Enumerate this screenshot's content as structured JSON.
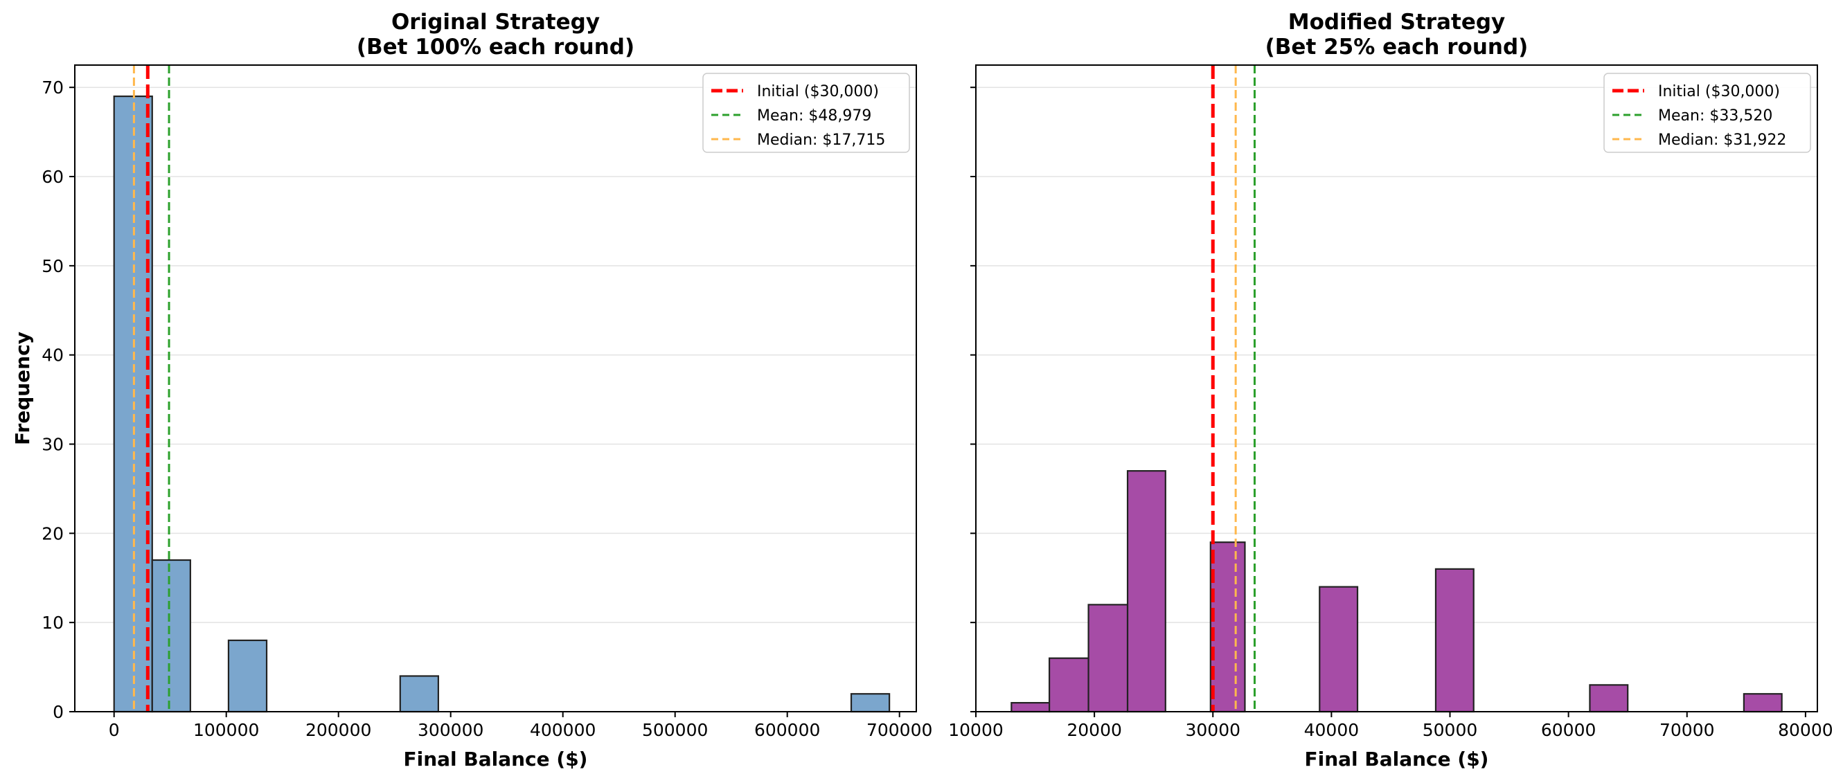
{
  "chart_data": [
    {
      "type": "bar",
      "title": "Original Strategy\n(Bet 100% each round)",
      "title_lines": [
        "Original Strategy",
        "(Bet 100% each round)"
      ],
      "xlabel": "Final Balance ($)",
      "ylabel": "Frequency",
      "xlim": [
        -35000,
        715000
      ],
      "ylim": [
        0,
        72.5
      ],
      "xticks": [
        0,
        100000,
        200000,
        300000,
        400000,
        500000,
        600000,
        700000
      ],
      "yticks": [
        0,
        10,
        20,
        30,
        40,
        50,
        60,
        70
      ],
      "grid": "y",
      "legend_position": "top-right",
      "bar_color": "#7ba6cd",
      "bars": [
        {
          "x0": 0,
          "x1": 34000,
          "count": 69
        },
        {
          "x0": 34000,
          "x1": 68000,
          "count": 17
        },
        {
          "x0": 102000,
          "x1": 136000,
          "count": 8
        },
        {
          "x0": 255000,
          "x1": 289000,
          "count": 4
        },
        {
          "x0": 657000,
          "x1": 691000,
          "count": 2
        }
      ],
      "reference_lines": [
        {
          "label": "Initial ($30,000)",
          "x": 30000,
          "color": "#ff0000",
          "style": "dashed-thick"
        },
        {
          "label": "Mean: $48,979",
          "x": 48979,
          "color": "#2ca02c",
          "style": "dashed"
        },
        {
          "label": "Median: $17,715",
          "x": 17715,
          "color": "#ffb84d",
          "style": "dashed"
        }
      ]
    },
    {
      "type": "bar",
      "title": "Modified Strategy\n(Bet 25% each round)",
      "title_lines": [
        "Modified Strategy",
        "(Bet 25% each round)"
      ],
      "xlabel": "Final Balance ($)",
      "ylabel": "",
      "xlim": [
        10000,
        81000
      ],
      "ylim": [
        0,
        72.5
      ],
      "xticks": [
        10000,
        20000,
        30000,
        40000,
        50000,
        60000,
        70000,
        80000
      ],
      "yticks": [
        0,
        10,
        20,
        30,
        40,
        50,
        60,
        70
      ],
      "grid": "y",
      "legend_position": "top-right",
      "bar_color": "#a64ca6",
      "bars": [
        {
          "x0": 13000,
          "x1": 16200,
          "count": 1
        },
        {
          "x0": 16200,
          "x1": 19500,
          "count": 6
        },
        {
          "x0": 19500,
          "x1": 22800,
          "count": 12
        },
        {
          "x0": 22800,
          "x1": 26000,
          "count": 27
        },
        {
          "x0": 29800,
          "x1": 32700,
          "count": 19
        },
        {
          "x0": 39000,
          "x1": 42200,
          "count": 14
        },
        {
          "x0": 48800,
          "x1": 52000,
          "count": 16
        },
        {
          "x0": 61800,
          "x1": 65000,
          "count": 3
        },
        {
          "x0": 74800,
          "x1": 78000,
          "count": 2
        }
      ],
      "reference_lines": [
        {
          "label": "Initial ($30,000)",
          "x": 30000,
          "color": "#ff0000",
          "style": "dashed-thick"
        },
        {
          "label": "Mean: $33,520",
          "x": 33520,
          "color": "#2ca02c",
          "style": "dashed"
        },
        {
          "label": "Median: $31,922",
          "x": 31922,
          "color": "#ffb84d",
          "style": "dashed"
        }
      ]
    }
  ]
}
